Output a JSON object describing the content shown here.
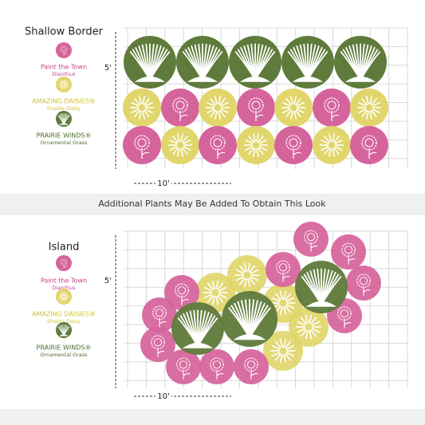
{
  "top": {
    "title": "Shallow Border",
    "legend": [
      {
        "name": "Paint the Town",
        "sub": "Dianthus"
      },
      {
        "name": "AMAZING DAISIES®",
        "sub": "Shasta Daisy"
      },
      {
        "name": "PRAIRIE WINDS®",
        "sub": "Ornamental Grass"
      }
    ],
    "height_label": "5'",
    "width_label": "10'"
  },
  "note": "Additional Plants May Be Added To Obtain This Look",
  "bottom": {
    "title": "Island",
    "legend": [
      {
        "name": "Paint the Town",
        "sub": "Dianthus"
      },
      {
        "name": "AMAZING DAISIES®",
        "sub": "Shasta Daisy"
      },
      {
        "name": "PRAIRIE WINDS®",
        "sub": "Ornamental Grass"
      }
    ],
    "height_label": "5'",
    "width_label": "10'"
  }
}
